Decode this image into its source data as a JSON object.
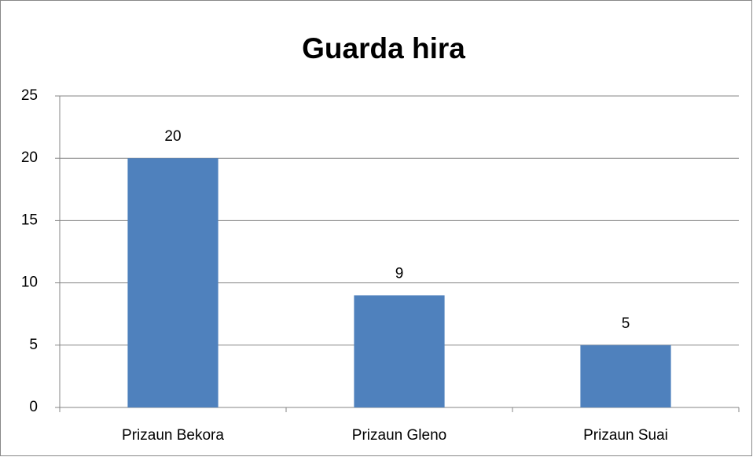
{
  "chart_data": {
    "type": "bar",
    "title": "Guarda hira",
    "categories": [
      "Prizaun Bekora",
      "Prizaun Gleno",
      "Prizaun Suai"
    ],
    "values": [
      20,
      9,
      5
    ],
    "color": "#4f81bd",
    "ylim": [
      0,
      25
    ],
    "yticks": [
      0,
      5,
      10,
      15,
      20,
      25
    ],
    "grid": true
  }
}
